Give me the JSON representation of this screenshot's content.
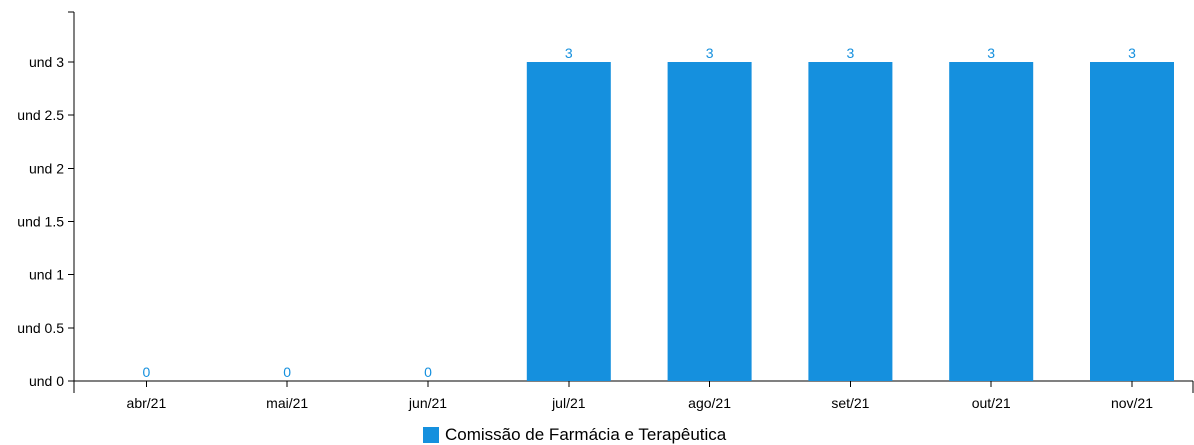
{
  "chart_data": {
    "type": "bar",
    "categories": [
      "abr/21",
      "mai/21",
      "jun/21",
      "jul/21",
      "ago/21",
      "set/21",
      "out/21",
      "nov/21"
    ],
    "series": [
      {
        "name": "Comissão de Farmácia e Terapêutica",
        "values": [
          0,
          0,
          0,
          3,
          3,
          3,
          3,
          3
        ],
        "color": "#1590de"
      }
    ],
    "yticks": [
      0,
      0.5,
      1,
      1.5,
      2,
      2.5,
      3
    ],
    "ytick_labels": [
      "und 0",
      "und 0.5",
      "und 1",
      "und 1.5",
      "und 2",
      "und 2.5",
      "und 3"
    ],
    "ylim": [
      0,
      3.5
    ],
    "grid": false,
    "legend_position": "bottom-center",
    "data_labels": [
      "0",
      "0",
      "0",
      "3",
      "3",
      "3",
      "3",
      "3"
    ]
  }
}
